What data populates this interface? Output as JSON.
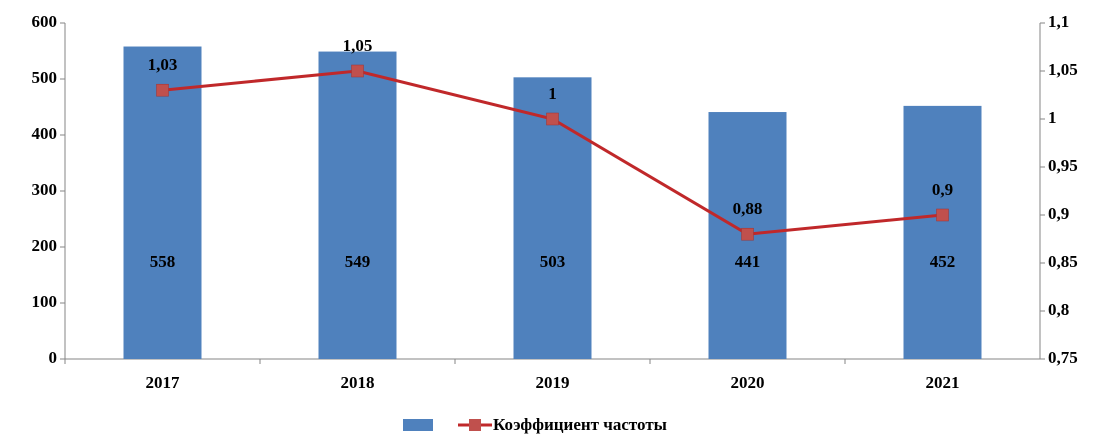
{
  "chart_data": {
    "type": "bar_line",
    "categories": [
      "2017",
      "2018",
      "2019",
      "2020",
      "2021"
    ],
    "series": [
      {
        "color": "#4f81bd",
        "values": [
          558,
          549,
          503,
          441,
          452
        ]
      },
      {
        "name": "Коэффициент частоты",
        "color": "#c0282a",
        "marker_color": "#c0504d",
        "axis": "y2",
        "values": [
          1.03,
          1.05,
          1,
          0.88,
          0.9
        ],
        "value_labels": [
          "1,03",
          "1,05",
          "1",
          "0,88",
          "0,9"
        ]
      }
    ],
    "ylim": [
      0,
      600
    ],
    "yticks": [
      0,
      100,
      200,
      300,
      400,
      500,
      600
    ],
    "y2lim": [
      0.75,
      1.1
    ],
    "y2ticks": [
      {
        "value": 0.75,
        "label": "0,75"
      },
      {
        "value": 0.8,
        "label": "0,8"
      },
      {
        "value": 0.85,
        "label": "0,85"
      },
      {
        "value": 0.9,
        "label": "0,9"
      },
      {
        "value": 0.95,
        "label": "0,95"
      },
      1,
      {
        "value": 1.05,
        "label": "1,05"
      },
      {
        "value": 1.1,
        "label": "1,1"
      }
    ],
    "grid": false,
    "legend": "bottom"
  }
}
